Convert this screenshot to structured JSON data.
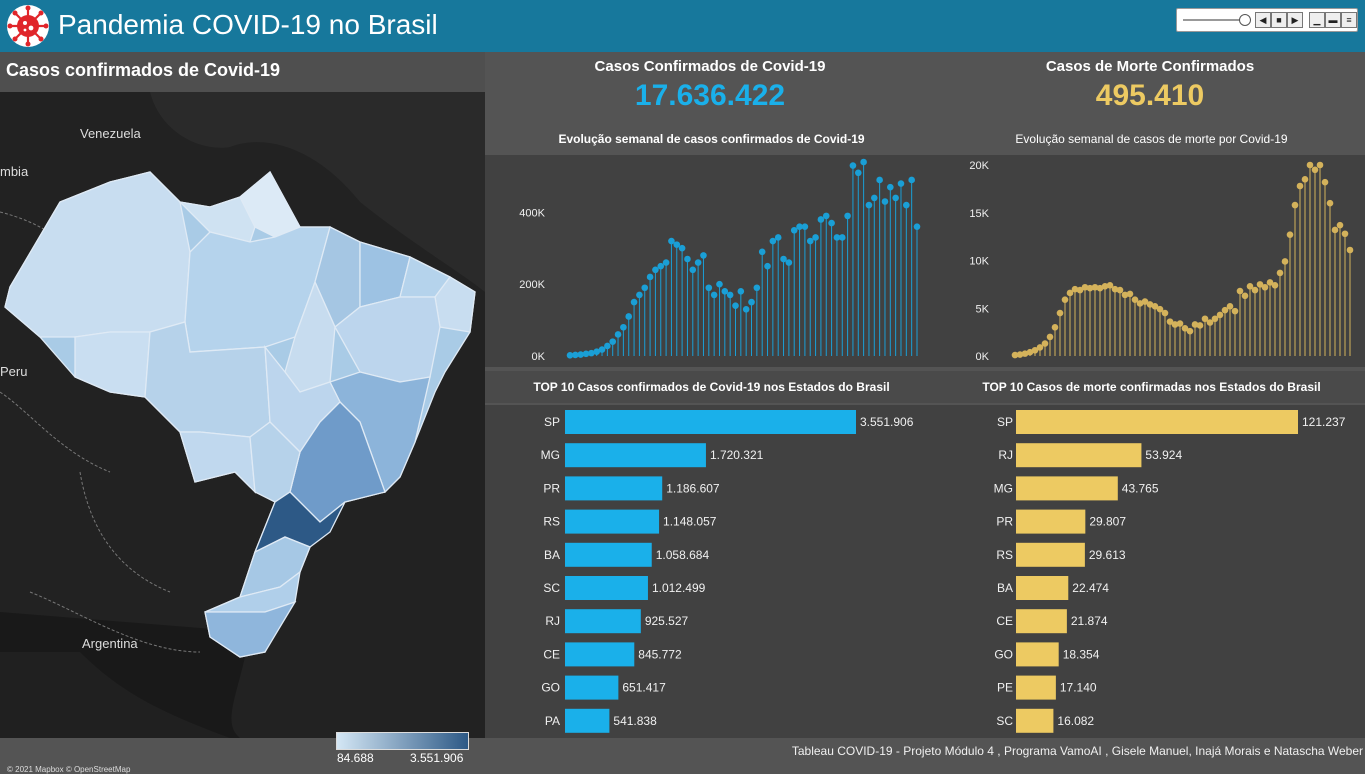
{
  "header": {
    "title": "Pandemia COVID-19 no Brasil",
    "accent_color": "#17789c",
    "logo_icon": "virus-icon",
    "toolbar_icons": [
      "slider-icon",
      "step-back-icon",
      "stop-icon",
      "step-forward-icon",
      "minimize-icon",
      "restore-icon",
      "menu-icon"
    ]
  },
  "map": {
    "title": "Casos confirmados de Covid-19",
    "labels": {
      "venezuela": "Venezuela",
      "colombia": "mbia",
      "peru": "Peru",
      "argentina": "Argentina"
    },
    "legend_min": "84.688",
    "legend_max": "3.551.906",
    "attribution": "© 2021 Mapbox © OpenStreetMap"
  },
  "kpis": {
    "cases_label": "Casos Confirmados de Covid-19",
    "cases_value": "17.636.422",
    "cases_color": "#1ab0ea",
    "deaths_label": "Casos de Morte Confirmados",
    "deaths_value": "495.410",
    "deaths_color": "#edca62"
  },
  "weekly_cases": {
    "title": "Evolução semanal de casos confirmados de Covid-19",
    "y_ticks": [
      "0K",
      "200K",
      "400K"
    ]
  },
  "weekly_deaths": {
    "title": "Evolução semanal de casos de morte por  Covid-19",
    "y_ticks": [
      "0K",
      "5K",
      "10K",
      "15K",
      "20K"
    ]
  },
  "top_cases": {
    "title": "TOP 10 Casos confirmados de Covid-19 nos Estados do Brasil"
  },
  "top_deaths": {
    "title": "TOP 10 Casos de morte confirmadas nos Estados do Brasil"
  },
  "chart_data": [
    {
      "type": "line",
      "title": "Evolução semanal de casos confirmados de Covid-19",
      "ylim": [
        0,
        540000
      ],
      "x": [
        1,
        2,
        3,
        4,
        5,
        6,
        7,
        8,
        9,
        10,
        11,
        12,
        13,
        14,
        15,
        16,
        17,
        18,
        19,
        20,
        21,
        22,
        23,
        24,
        25,
        26,
        27,
        28,
        29,
        30,
        31,
        32,
        33,
        34,
        35,
        36,
        37,
        38,
        39,
        40,
        41,
        42,
        43,
        44,
        45,
        46,
        47,
        48,
        49,
        50,
        51,
        52,
        53,
        54,
        55,
        56,
        57,
        58,
        59,
        60,
        61,
        62,
        63,
        64,
        65,
        66
      ],
      "values": [
        2000,
        3000,
        4000,
        6000,
        8000,
        12000,
        18000,
        28000,
        40000,
        60000,
        80000,
        110000,
        150000,
        170000,
        190000,
        220000,
        240000,
        250000,
        260000,
        320000,
        310000,
        300000,
        270000,
        240000,
        260000,
        280000,
        190000,
        170000,
        200000,
        180000,
        170000,
        140000,
        180000,
        130000,
        150000,
        190000,
        290000,
        250000,
        320000,
        330000,
        270000,
        260000,
        350000,
        360000,
        360000,
        320000,
        330000,
        380000,
        390000,
        370000,
        330000,
        330000,
        390000,
        530000,
        510000,
        540000,
        420000,
        440000,
        490000,
        430000,
        470000,
        440000,
        480000,
        420000,
        490000,
        360000
      ]
    },
    {
      "type": "line",
      "title": "Evolução semanal de casos de morte por  Covid-19",
      "ylim": [
        0,
        20000
      ],
      "x": [
        1,
        2,
        3,
        4,
        5,
        6,
        7,
        8,
        9,
        10,
        11,
        12,
        13,
        14,
        15,
        16,
        17,
        18,
        19,
        20,
        21,
        22,
        23,
        24,
        25,
        26,
        27,
        28,
        29,
        30,
        31,
        32,
        33,
        34,
        35,
        36,
        37,
        38,
        39,
        40,
        41,
        42,
        43,
        44,
        45,
        46,
        47,
        48,
        49,
        50,
        51,
        52,
        53,
        54,
        55,
        56,
        57,
        58,
        59,
        60,
        61,
        62,
        63,
        64,
        65,
        66,
        67,
        68
      ],
      "values": [
        100,
        150,
        250,
        400,
        600,
        900,
        1300,
        2000,
        3000,
        4500,
        5900,
        6600,
        7000,
        6900,
        7200,
        7100,
        7200,
        7100,
        7300,
        7400,
        7000,
        6900,
        6400,
        6500,
        5900,
        5500,
        5700,
        5400,
        5200,
        4900,
        4500,
        3600,
        3300,
        3400,
        2900,
        2600,
        3300,
        3200,
        3900,
        3500,
        3900,
        4300,
        4800,
        5200,
        4700,
        6800,
        6300,
        7300,
        6900,
        7500,
        7200,
        7700,
        7400,
        8700,
        9900,
        12700,
        15800,
        17800,
        18500,
        20000,
        19500,
        20000,
        18200,
        16000,
        13200,
        13700,
        12800,
        11100
      ]
    },
    {
      "type": "bar",
      "title": "TOP 10 Casos confirmados de Covid-19 nos Estados do Brasil",
      "categories": [
        "SP",
        "MG",
        "PR",
        "RS",
        "BA",
        "SC",
        "RJ",
        "CE",
        "GO",
        "PA"
      ],
      "values": [
        3551906,
        1720321,
        1186607,
        1148057,
        1058684,
        1012499,
        925527,
        845772,
        651417,
        541838
      ],
      "labels": [
        "3.551.906",
        "1.720.321",
        "1.186.607",
        "1.148.057",
        "1.058.684",
        "1.012.499",
        "925.527",
        "845.772",
        "651.417",
        "541.838"
      ]
    },
    {
      "type": "bar",
      "title": "TOP 10 Casos de morte confirmadas nos Estados do Brasil",
      "categories": [
        "SP",
        "RJ",
        "MG",
        "PR",
        "RS",
        "BA",
        "CE",
        "GO",
        "PE",
        "SC"
      ],
      "values": [
        121237,
        53924,
        43765,
        29807,
        29613,
        22474,
        21874,
        18354,
        17140,
        16082
      ],
      "labels": [
        "121.237",
        "53.924",
        "43.765",
        "29.807",
        "29.613",
        "22.474",
        "21.874",
        "18.354",
        "17.140",
        "16.082"
      ]
    }
  ],
  "footer": {
    "credits": "Tableau COVID-19 - Projeto Módulo 4 , Programa VamoAI , Gisele Manuel, Inajá Morais e Natascha Weber"
  }
}
